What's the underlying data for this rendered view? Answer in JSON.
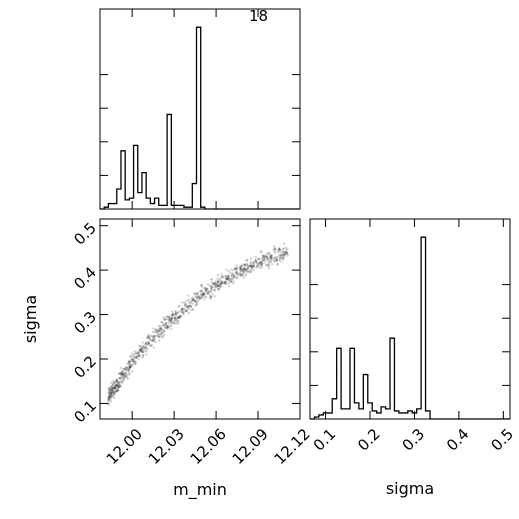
{
  "chart_data": {
    "type": "corner",
    "annotation": "18",
    "panels": [
      {
        "id": "hist_m_min",
        "type": "histogram",
        "variable": "m_min",
        "xlim": [
          11.977,
          12.12
        ],
        "bins": [
          11.977,
          11.98,
          11.983,
          11.986,
          11.989,
          11.992,
          11.995,
          11.998,
          12.001,
          12.004,
          12.007,
          12.01,
          12.013,
          12.016,
          12.019,
          12.022,
          12.025,
          12.028,
          12.031,
          12.034,
          12.037,
          12.04,
          12.043,
          12.046,
          12.049,
          12.052,
          12.055,
          12.058,
          12.061,
          12.064,
          12.067,
          12.07,
          12.073,
          12.076,
          12.079,
          12.082,
          12.085,
          12.088,
          12.091,
          12.094,
          12.097,
          12.1,
          12.103,
          12.106,
          12.109,
          12.112,
          12.115,
          12.118,
          12.12
        ],
        "counts": [
          0,
          1,
          3,
          3,
          11,
          32,
          5,
          6,
          35,
          9,
          20,
          6,
          3,
          6,
          2,
          2,
          52,
          2,
          2,
          2,
          1,
          1,
          14,
          100,
          1,
          0,
          0,
          0,
          0,
          0,
          0,
          0,
          0,
          0,
          0,
          0,
          0,
          0,
          0,
          0,
          0,
          0,
          0,
          0,
          0,
          0,
          0,
          0
        ]
      },
      {
        "id": "hist_sigma",
        "type": "histogram",
        "variable": "sigma",
        "xlim": [
          0.065,
          0.515
        ],
        "bins": [
          0.065,
          0.075,
          0.085,
          0.095,
          0.105,
          0.115,
          0.125,
          0.135,
          0.145,
          0.155,
          0.165,
          0.175,
          0.185,
          0.195,
          0.205,
          0.215,
          0.225,
          0.235,
          0.245,
          0.255,
          0.265,
          0.275,
          0.285,
          0.295,
          0.305,
          0.315,
          0.325,
          0.335,
          0.345,
          0.355,
          0.365,
          0.375,
          0.385,
          0.395,
          0.405,
          0.415,
          0.425,
          0.435,
          0.445,
          0.455,
          0.465,
          0.475,
          0.485,
          0.495,
          0.505,
          0.515
        ],
        "counts": [
          0,
          1,
          2,
          3,
          3,
          10,
          35,
          5,
          5,
          35,
          8,
          5,
          22,
          8,
          4,
          3,
          6,
          5,
          40,
          4,
          3,
          3,
          4,
          3,
          5,
          90,
          4,
          0,
          0,
          0,
          0,
          0,
          0,
          0,
          0,
          0,
          0,
          0,
          0,
          0,
          0,
          0,
          0,
          0,
          0
        ],
        "x_ticks": [
          "0.1",
          "0.2",
          "0.3",
          "0.4",
          "0.5"
        ],
        "xlabel": "sigma"
      },
      {
        "id": "scatter",
        "type": "scatter",
        "x_variable": "m_min",
        "y_variable": "sigma",
        "xlim": [
          11.977,
          12.12
        ],
        "ylim": [
          0.065,
          0.515
        ],
        "x_ticks": [
          "12.00",
          "12.03",
          "12.06",
          "12.09",
          "12.12"
        ],
        "y_ticks": [
          "0.1",
          "0.2",
          "0.3",
          "0.4",
          "0.5"
        ],
        "xlabel": "m_min",
        "ylabel": "sigma",
        "curve": "sigma ≈ 0.10 + 0.435*(1 - exp(-(m_min - 11.98)/0.085))",
        "points_x_range": [
          11.983,
          12.112
        ],
        "n_points": 900
      }
    ]
  }
}
